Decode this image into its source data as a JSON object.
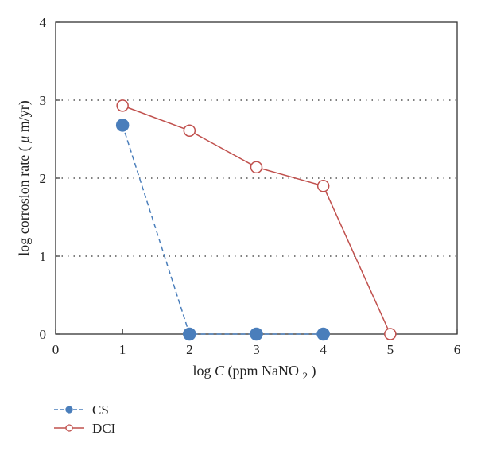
{
  "chart_data": {
    "type": "line",
    "xlabel": {
      "prefix": "log",
      "var": "C",
      "unit_open": " (ppm NaNO",
      "subscript": "2",
      "unit_close": ")"
    },
    "ylabel": {
      "before": "log corrosion rate (",
      "mu": "μ",
      "after": "m/yr)"
    },
    "xlim": [
      0,
      6
    ],
    "ylim": [
      0,
      4
    ],
    "xticks": [
      "0",
      "1",
      "2",
      "3",
      "4",
      "5",
      "6"
    ],
    "yticks": [
      "0",
      "1",
      "2",
      "3",
      "4"
    ],
    "grid": "horizontal dotted",
    "legend_position": "bottom-left below plot",
    "series": [
      {
        "name": "CS",
        "color": "#4a7ebb",
        "line_style": "dashed",
        "marker": "filled-circle",
        "x": [
          1,
          2,
          3,
          4
        ],
        "y": [
          2.68,
          0,
          0,
          0
        ]
      },
      {
        "name": "DCI",
        "color": "#c0504d",
        "line_style": "solid",
        "marker": "open-circle",
        "x": [
          1,
          2,
          3,
          4,
          5
        ],
        "y": [
          2.93,
          2.61,
          2.14,
          1.9,
          0
        ]
      }
    ]
  }
}
